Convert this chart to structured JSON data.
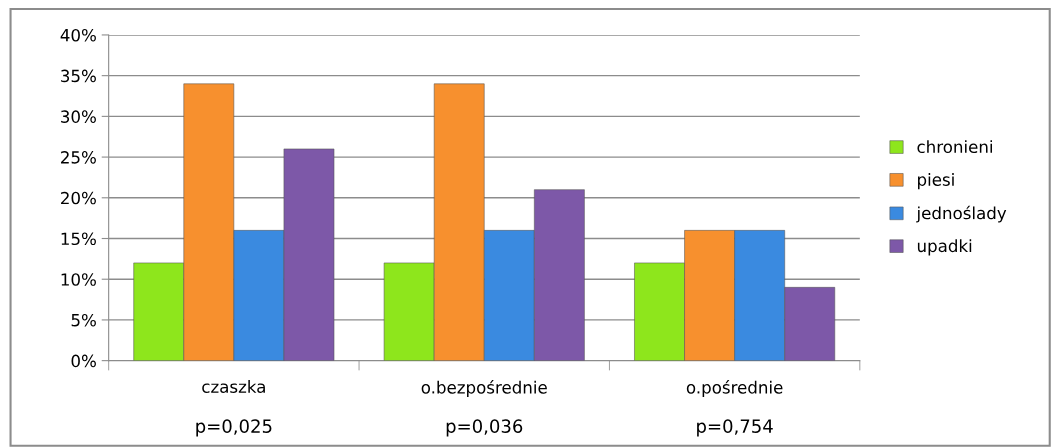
{
  "chart_data": {
    "type": "bar",
    "categories": [
      "czaszka",
      "o.bezpośrednie",
      "o.pośrednie"
    ],
    "annotations": [
      "p=0,025",
      "p=0,036",
      "p=0,754"
    ],
    "series": [
      {
        "name": "chronieni",
        "color": "#8ee61c",
        "values": [
          12,
          12,
          12
        ]
      },
      {
        "name": "piesi",
        "color": "#f7902e",
        "values": [
          34,
          34,
          16
        ]
      },
      {
        "name": "jednoślady",
        "color": "#3a8ae0",
        "values": [
          16,
          16,
          16
        ]
      },
      {
        "name": "upadki",
        "color": "#7d58a8",
        "values": [
          26,
          21,
          9
        ]
      }
    ],
    "ylim": [
      0,
      40
    ],
    "yticks": [
      {
        "value": 0,
        "label": "0%"
      },
      {
        "value": 5,
        "label": "5%"
      },
      {
        "value": 10,
        "label": "10%"
      },
      {
        "value": 15,
        "label": "15%"
      },
      {
        "value": 20,
        "label": "20%"
      },
      {
        "value": 25,
        "label": "25%"
      },
      {
        "value": 30,
        "label": "30%"
      },
      {
        "value": 35,
        "label": "35%"
      },
      {
        "value": 40,
        "label": "40%"
      }
    ],
    "grid": "y",
    "legend": "right"
  }
}
